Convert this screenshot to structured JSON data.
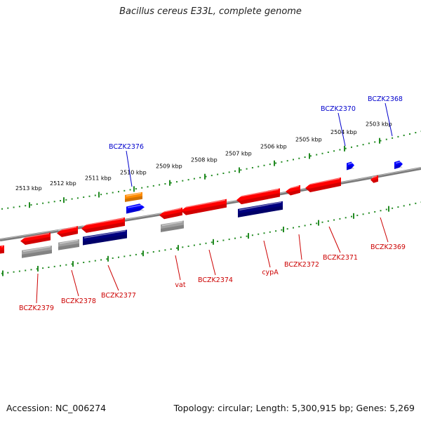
{
  "title": "Bacillus cereus E33L, complete genome",
  "footer": {
    "accession": "Accession: NC_006274",
    "summary": "Topology: circular; Length: 5,300,915 bp; Genes: 5,269"
  },
  "colors": {
    "forward_gene": "#ff0000",
    "cds_blue": "#0000ff",
    "cds_navy": "#000080",
    "pseudo_gray": "#a0a0a0",
    "orange": "#ff8c00",
    "tick_green": "#228b22",
    "label_red": "#cc0000",
    "label_blue": "#0000cc",
    "backbone": "#808080"
  },
  "ticks": [
    "2513 kbp",
    "2512 kbp",
    "2511 kbp",
    "2510 kbp",
    "2509 kbp",
    "2508 kbp",
    "2507 kbp",
    "2506 kbp",
    "2505 kbp",
    "2504 kbp",
    "2503 kbp"
  ],
  "gene_labels": [
    {
      "text": "BCZK2376",
      "strand": "forward"
    },
    {
      "text": "BCZK2370",
      "strand": "forward"
    },
    {
      "text": "BCZK2368",
      "strand": "forward"
    },
    {
      "text": "BCZK2379",
      "strand": "reverse"
    },
    {
      "text": "BCZK2378",
      "strand": "reverse"
    },
    {
      "text": "BCZK2377",
      "strand": "reverse"
    },
    {
      "text": "vat",
      "strand": "reverse"
    },
    {
      "text": "BCZK2374",
      "strand": "reverse"
    },
    {
      "text": "cypA",
      "strand": "reverse"
    },
    {
      "text": "BCZK2372",
      "strand": "reverse"
    },
    {
      "text": "BCZK2371",
      "strand": "reverse"
    },
    {
      "text": "BCZK2369",
      "strand": "reverse"
    }
  ]
}
